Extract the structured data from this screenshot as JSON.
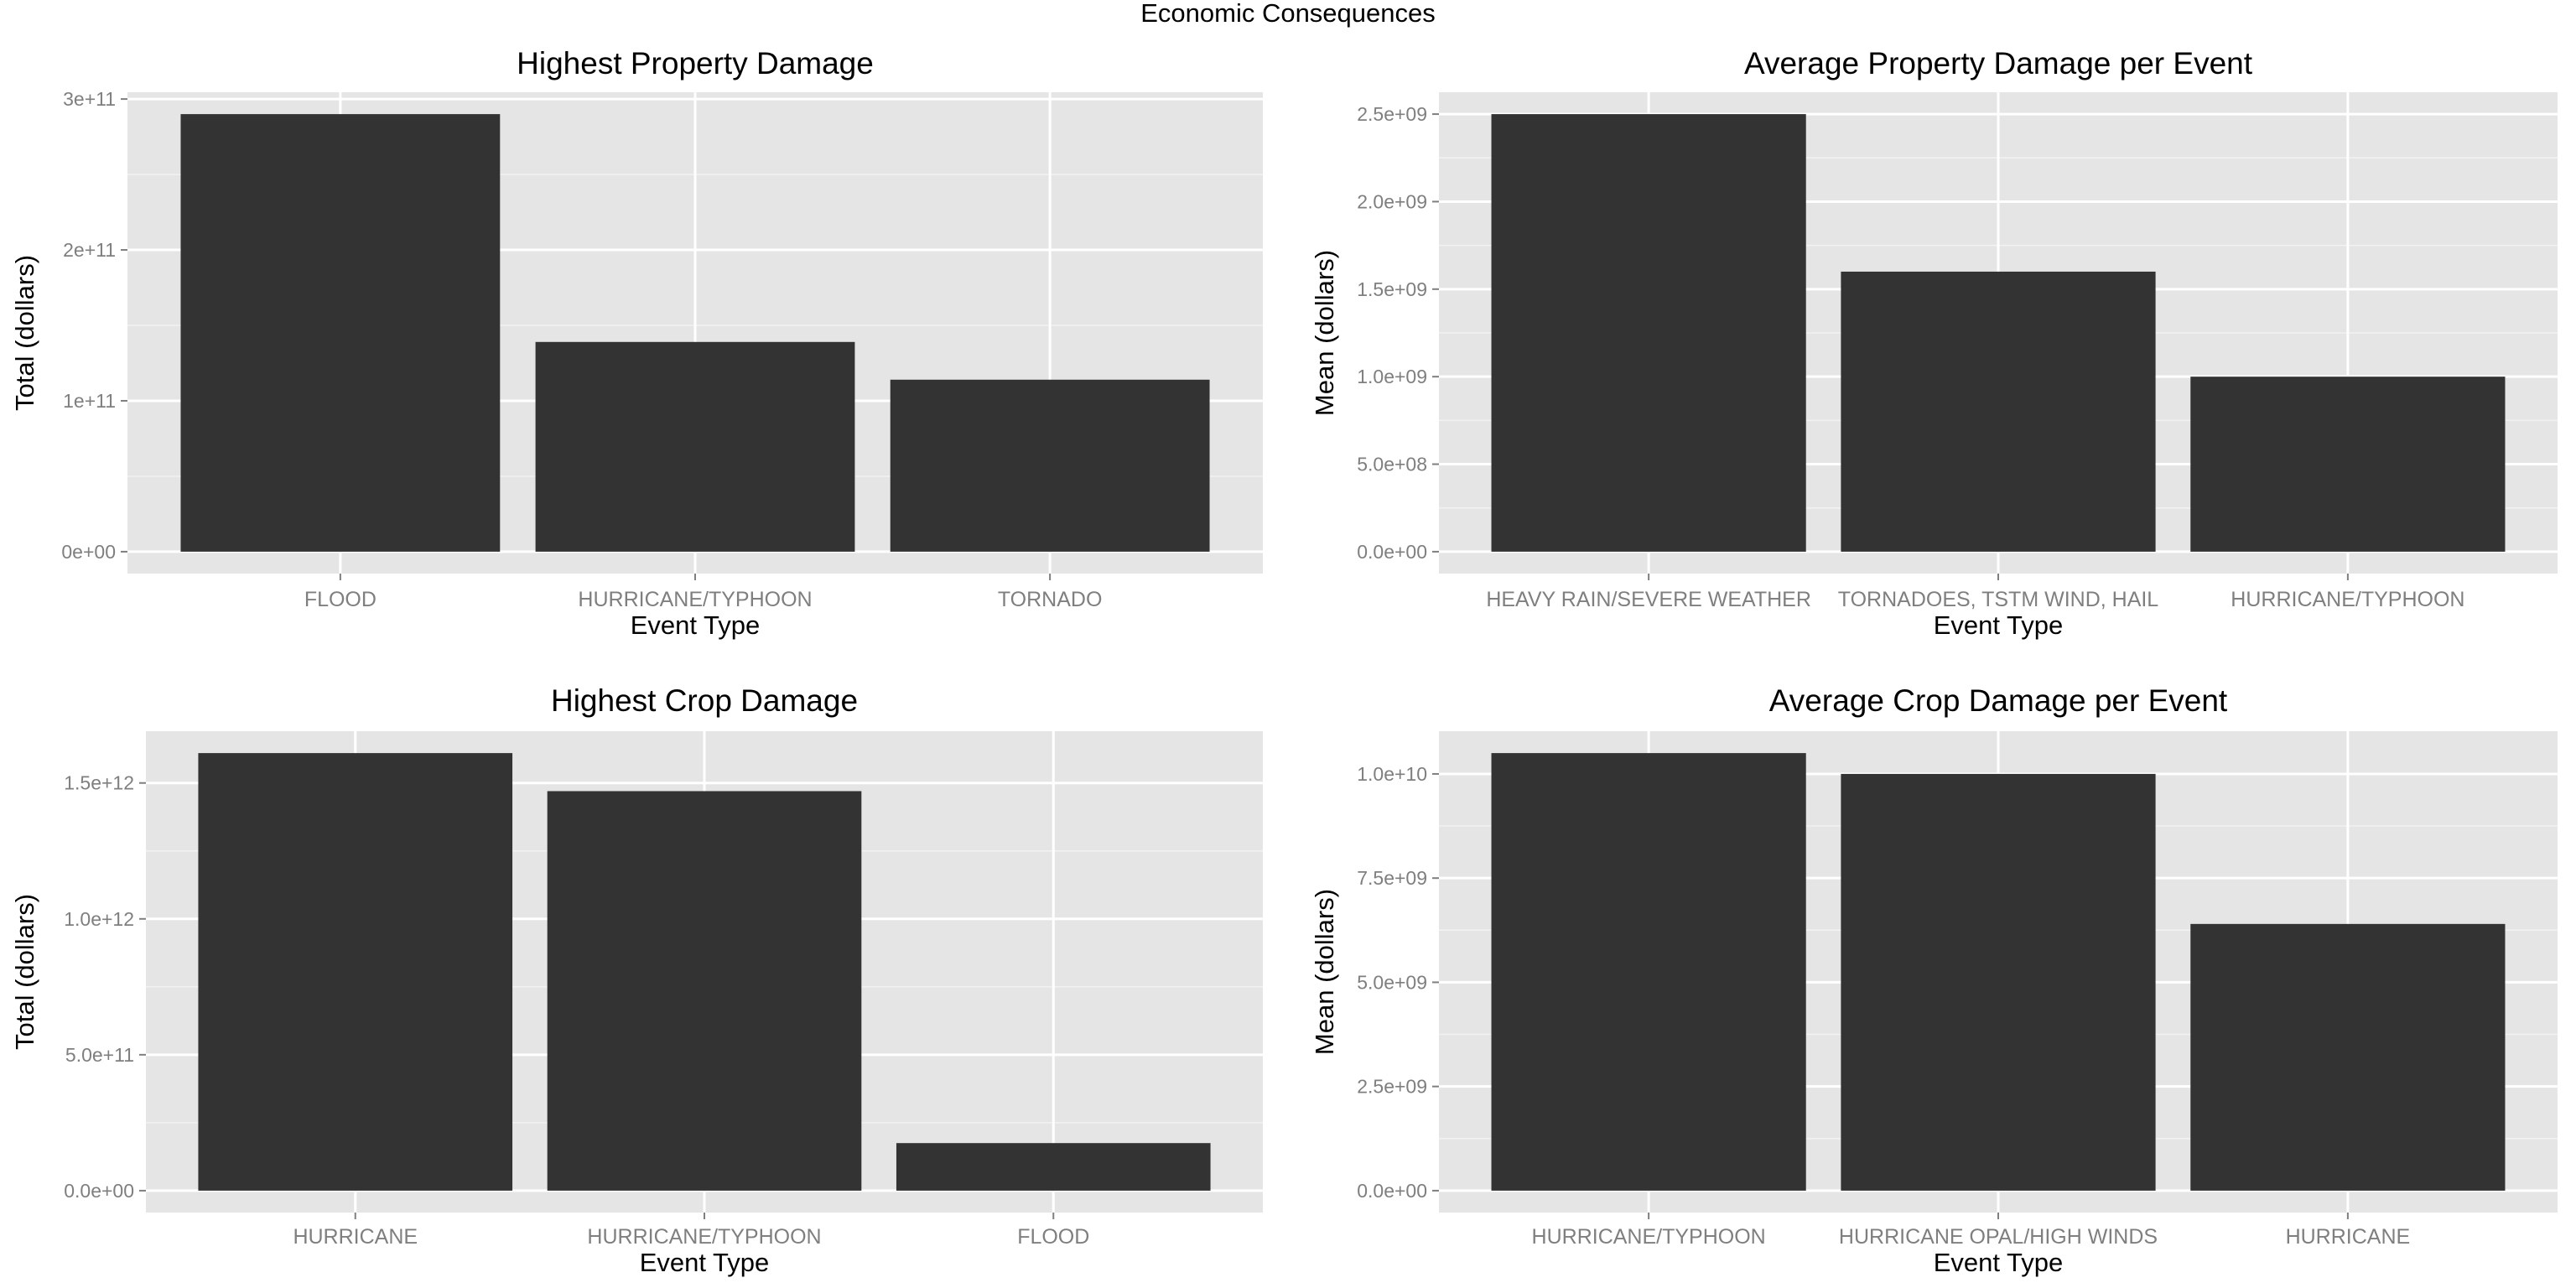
{
  "figure": {
    "title": "Economic Consequences"
  },
  "chart_data": [
    {
      "type": "bar",
      "title": "Highest Property Damage",
      "xlabel": "Event Type",
      "ylabel": "Total (dollars)",
      "categories": [
        "FLOOD",
        "HURRICANE/TYPHOON",
        "TORNADO"
      ],
      "values": [
        290000000000.0,
        139000000000.0,
        114000000000.0
      ],
      "ylim": [
        -14500000000.0,
        304500000000.0
      ],
      "yticks": [
        0,
        100000000000.0,
        200000000000.0,
        300000000000.0
      ],
      "ytick_labels": [
        "0e+00",
        "1e+11",
        "2e+11",
        "3e+11"
      ],
      "grid": true
    },
    {
      "type": "bar",
      "title": "Average Property Damage per Event",
      "xlabel": "Event Type",
      "ylabel": "Mean (dollars)",
      "categories": [
        "HEAVY RAIN/SEVERE WEATHER",
        "TORNADOES, TSTM WIND, HAIL",
        "HURRICANE/TYPHOON"
      ],
      "values": [
        2500000000.0,
        1600000000.0,
        1000000000.0
      ],
      "ylim": [
        -125000000.0,
        2625000000.0
      ],
      "yticks": [
        0,
        500000000.0,
        1000000000.0,
        1500000000.0,
        2000000000.0,
        2500000000.0
      ],
      "ytick_labels": [
        "0.0e+00",
        "5.0e+08",
        "1.0e+09",
        "1.5e+09",
        "2.0e+09",
        "2.5e+09"
      ],
      "grid": true
    },
    {
      "type": "bar",
      "title": "Highest Crop Damage",
      "xlabel": "Event Type",
      "ylabel": "Total (dollars)",
      "categories": [
        "HURRICANE",
        "HURRICANE/TYPHOON",
        "FLOOD"
      ],
      "values": [
        1610000000000.0,
        1470000000000.0,
        175000000000.0
      ],
      "ylim": [
        -80500000000.0,
        1690500000000.0
      ],
      "yticks": [
        0,
        500000000000.0,
        1000000000000.0,
        1500000000000.0
      ],
      "ytick_labels": [
        "0.0e+00",
        "5.0e+11",
        "1.0e+12",
        "1.5e+12"
      ],
      "grid": true
    },
    {
      "type": "bar",
      "title": "Average Crop Damage per Event",
      "xlabel": "Event Type",
      "ylabel": "Mean (dollars)",
      "categories": [
        "HURRICANE/TYPHOON",
        "HURRICANE OPAL/HIGH WINDS",
        "HURRICANE"
      ],
      "values": [
        10500000000.0,
        10000000000.0,
        6400000000.0
      ],
      "ylim": [
        -525000000.0,
        11025000000.0
      ],
      "yticks": [
        0,
        2500000000.0,
        5000000000.0,
        7500000000.0,
        10000000000.0
      ],
      "ytick_labels": [
        "0.0e+00",
        "2.5e+09",
        "5.0e+09",
        "7.5e+09",
        "1.0e+10"
      ],
      "grid": true
    }
  ],
  "colors": {
    "panel_background": "#e5e5e5",
    "bar_fill": "#333333",
    "grid_major": "#ffffff",
    "grid_minor": "#f2f2f2",
    "tick_text": "#7f7f7f"
  }
}
